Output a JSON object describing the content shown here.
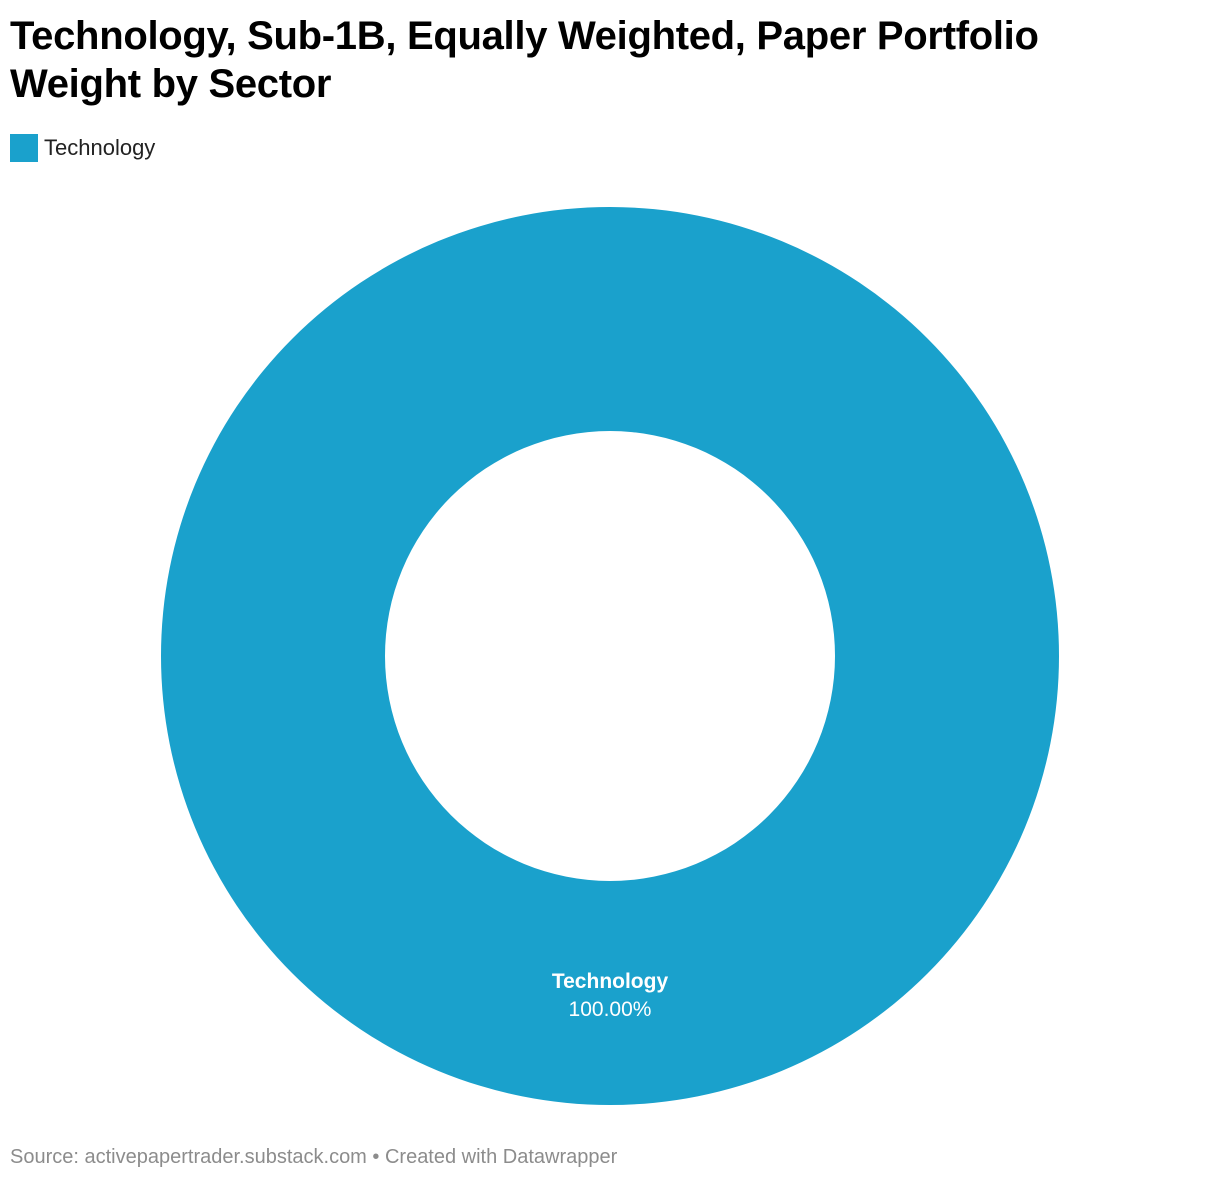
{
  "title": {
    "line1": "Technology, Sub-1B, Equally Weighted, Paper Portfolio",
    "line2": "Weight by Sector"
  },
  "legend": {
    "items": [
      {
        "label": "Technology",
        "color": "#1aa1cc"
      }
    ]
  },
  "chart_data": {
    "type": "pie",
    "variant": "donut",
    "title": "Technology, Sub-1B, Equally Weighted, Paper Portfolio Weight by Sector",
    "unit": "%",
    "slices": [
      {
        "label": "Technology",
        "value": 100.0,
        "display_value": "100.00%",
        "color": "#1aa1cc"
      }
    ],
    "legend_position": "top-left"
  },
  "footer": {
    "source": "Source: activepapertrader.substack.com • Created with Datawrapper"
  }
}
